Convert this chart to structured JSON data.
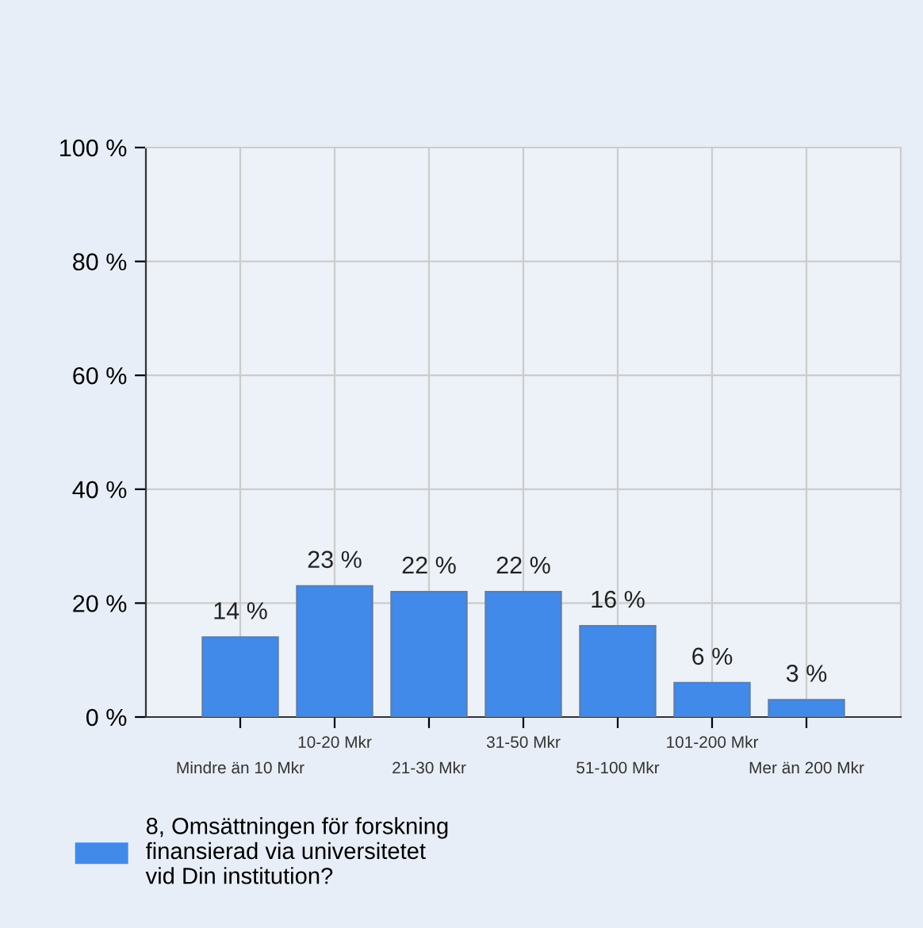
{
  "chart_data": {
    "type": "bar",
    "categories": [
      "Mindre än 10 Mkr",
      "10-20 Mkr",
      "21-30 Mkr",
      "31-50 Mkr",
      "51-100 Mkr",
      "101-200 Mkr",
      "Mer än 200 Mkr"
    ],
    "series": [
      {
        "name": "8, Omsättningen för forskning\nfinansierad via universitetet\nvid Din institution?",
        "color": "#418ae9",
        "values": [
          14,
          23,
          22,
          22,
          16,
          6,
          3
        ],
        "value_labels": [
          "14 %",
          "23 %",
          "22 %",
          "22 %",
          "16 %",
          "6 %",
          "3 %"
        ]
      }
    ],
    "ylim": [
      0,
      100
    ],
    "yticks": [
      {
        "value": 0,
        "label": "0 %"
      },
      {
        "value": 20,
        "label": "20 %"
      },
      {
        "value": 40,
        "label": "40 %"
      },
      {
        "value": 60,
        "label": "60 %"
      },
      {
        "value": 80,
        "label": "80 %"
      },
      {
        "value": 100,
        "label": "100 %"
      }
    ],
    "grid": true,
    "legend": "bottom left"
  }
}
